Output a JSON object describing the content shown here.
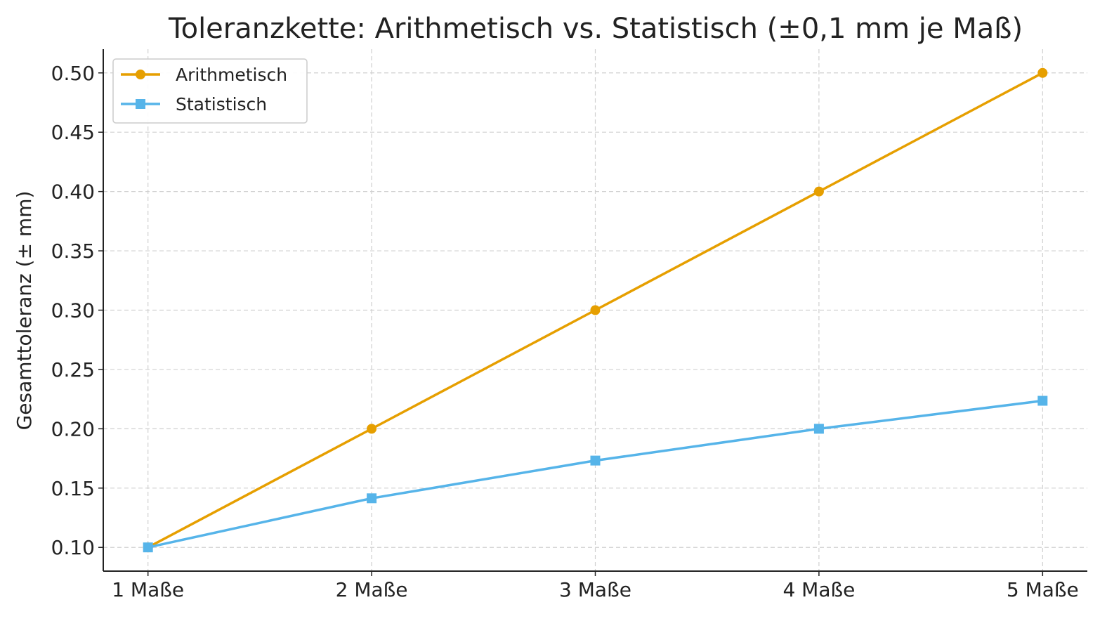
{
  "chart_data": {
    "type": "line",
    "title": "Toleranzkette: Arithmetisch vs. Statistisch (±0,1 mm je Maß)",
    "xlabel": "",
    "ylabel": "Gesamttoleranz (± mm)",
    "categories": [
      "1 Maße",
      "2 Maße",
      "3 Maße",
      "4 Maße",
      "5 Maße"
    ],
    "yticks": [
      "0.10",
      "0.15",
      "0.20",
      "0.25",
      "0.30",
      "0.35",
      "0.40",
      "0.45",
      "0.50"
    ],
    "ylim": [
      0.08,
      0.52
    ],
    "grid": true,
    "legend_position": "top-left",
    "series": [
      {
        "name": "Arithmetisch",
        "values": [
          0.1,
          0.2,
          0.3,
          0.4,
          0.5
        ],
        "color": "#E69F00",
        "marker": "circle"
      },
      {
        "name": "Statistisch",
        "values": [
          0.1,
          0.1414,
          0.1732,
          0.2,
          0.2236
        ],
        "color": "#56B4E9",
        "marker": "square"
      }
    ]
  }
}
